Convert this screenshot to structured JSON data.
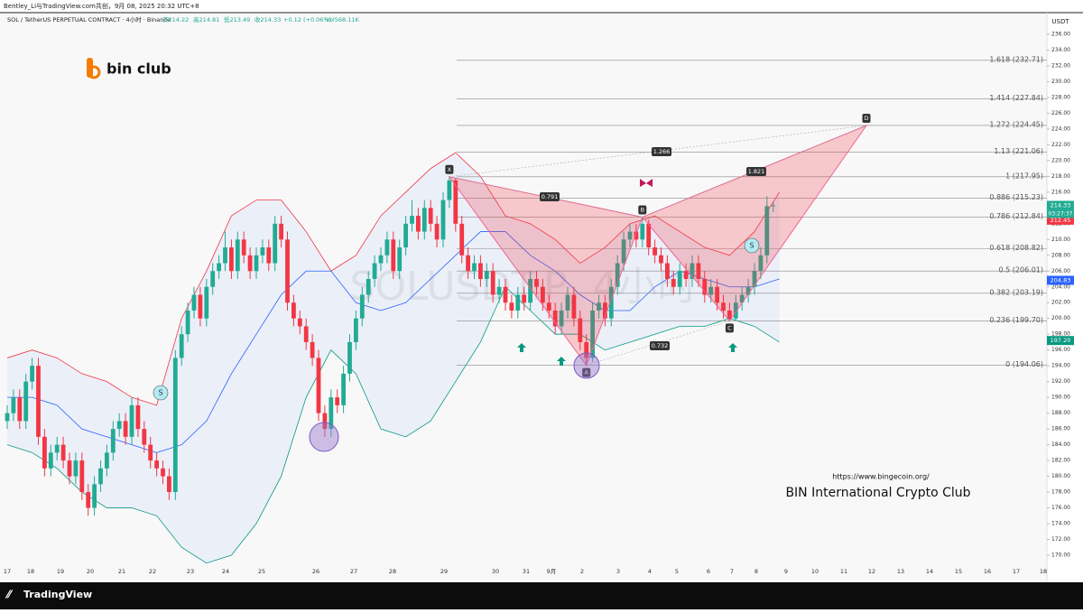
{
  "header": {
    "credit": "Bentley_Li与TradingView.com共创，9月 08, 2025 20:32 UTC+8",
    "symbol": "SOL / TetherUS PERPETUAL CONTRACT · 4小时 · Binance",
    "open": "开214.22",
    "high": "高214.81",
    "low": "低213.49",
    "close": "收214.33",
    "change": "+0.12 (+0.06%)",
    "volume": "Vol568.11K"
  },
  "logo": "bin club",
  "watermark": "SOLUSDT.P, 4小时",
  "url": "https://www.bingecoin.org/",
  "club": "BIN International Crypto Club",
  "brand": "TradingView",
  "currency": "USDT",
  "chart_data": {
    "type": "candlestick",
    "ylim": [
      170,
      236
    ],
    "yticks": [
      {
        "value": 236,
        "label": "236.00"
      },
      {
        "value": 234,
        "label": "234.00"
      },
      {
        "value": 232,
        "label": "232.00"
      },
      {
        "value": 230,
        "label": "230.00"
      },
      {
        "value": 228,
        "label": "228.00"
      },
      {
        "value": 226,
        "label": "226.00"
      },
      {
        "value": 224,
        "label": "224.00"
      },
      {
        "value": 222,
        "label": "222.00"
      },
      {
        "value": 220,
        "label": "220.00"
      },
      {
        "value": 218,
        "label": "218.00"
      },
      {
        "value": 216,
        "label": "216.00"
      },
      {
        "value": 214,
        "label": "214.00"
      },
      {
        "value": 212,
        "label": "212.00"
      },
      {
        "value": 210,
        "label": "210.00"
      },
      {
        "value": 208,
        "label": "208.00"
      },
      {
        "value": 206,
        "label": "206.00"
      },
      {
        "value": 204,
        "label": "204.00"
      },
      {
        "value": 202,
        "label": "202.00"
      },
      {
        "value": 200,
        "label": "200.00"
      },
      {
        "value": 198,
        "label": "198.00"
      },
      {
        "value": 196,
        "label": "196.00"
      },
      {
        "value": 194,
        "label": "194.00"
      },
      {
        "value": 192,
        "label": "192.00"
      },
      {
        "value": 190,
        "label": "190.00"
      },
      {
        "value": 188,
        "label": "188.00"
      },
      {
        "value": 186,
        "label": "186.00"
      },
      {
        "value": 184,
        "label": "184.00"
      },
      {
        "value": 182,
        "label": "182.00"
      },
      {
        "value": 180,
        "label": "180.00"
      },
      {
        "value": 178,
        "label": "178.00"
      },
      {
        "value": 176,
        "label": "176.00"
      },
      {
        "value": 174,
        "label": "174.00"
      },
      {
        "value": 172,
        "label": "172.00"
      },
      {
        "value": 170,
        "label": "170.00"
      }
    ],
    "xticks": [
      "17",
      "18",
      "19",
      "20",
      "21",
      "22",
      "23",
      "24",
      "25",
      "26",
      "27",
      "28",
      "29",
      "30",
      "31",
      "9月",
      "2",
      "3",
      "4",
      "5",
      "6",
      "7",
      "8",
      "9",
      "10",
      "11",
      "12",
      "13",
      "14",
      "15",
      "16",
      "17",
      "18"
    ],
    "up_color": "#22ab94",
    "down_color": "#f23645",
    "open": [
      187,
      188,
      190,
      187,
      192,
      194,
      185,
      181,
      183,
      184,
      182,
      180,
      182,
      178,
      176,
      179,
      181,
      183,
      186,
      187,
      185,
      189,
      186,
      184,
      182,
      181,
      180,
      178,
      195,
      198,
      201,
      203,
      200,
      204,
      206,
      207,
      209,
      206,
      210,
      208,
      206,
      208,
      209,
      207,
      212,
      210,
      202,
      200,
      199,
      197,
      195,
      188,
      186,
      190,
      189,
      193,
      197,
      200,
      203,
      205,
      207,
      208,
      210,
      206,
      209,
      212,
      213,
      211,
      214,
      212,
      210,
      215,
      217.5,
      212,
      208,
      206,
      207,
      205,
      206,
      203,
      204,
      202,
      201,
      203,
      202,
      205,
      204,
      202,
      201,
      199,
      201,
      203,
      200,
      197,
      195,
      201,
      202,
      200,
      204,
      207,
      210,
      211,
      210,
      212,
      209,
      208,
      207,
      205,
      204,
      206,
      205,
      207,
      205,
      203,
      204,
      202,
      201,
      200,
      202,
      203,
      204,
      206,
      208,
      214.22
    ],
    "high": [
      189,
      191,
      191,
      193,
      195,
      195,
      186,
      184,
      185,
      185,
      183,
      183,
      183,
      179,
      180,
      182,
      184,
      187,
      188,
      188,
      190,
      190,
      187,
      185,
      183,
      182,
      181,
      196,
      199,
      202,
      204,
      204,
      205,
      207,
      208,
      211,
      210,
      211,
      211,
      209,
      209,
      210,
      210,
      213,
      213,
      211,
      203,
      201,
      200,
      198,
      196,
      189,
      191,
      191,
      194,
      198,
      201,
      204,
      206,
      208,
      209,
      211,
      211,
      210,
      213,
      215,
      214,
      215,
      215,
      213,
      216,
      217.95,
      217.8,
      213,
      209,
      208,
      208,
      207,
      207,
      205,
      205,
      203,
      204,
      204,
      206,
      206,
      205,
      203,
      202,
      202,
      204,
      204,
      201,
      198,
      202,
      203,
      203,
      205,
      208,
      211,
      212,
      212,
      212.84,
      212.5,
      210,
      209,
      208,
      206,
      207,
      207,
      208,
      208,
      206,
      205,
      205,
      203,
      202,
      203,
      204,
      205,
      207,
      209,
      215.5,
      214.81
    ],
    "low": [
      186,
      187,
      186,
      186,
      191,
      184,
      180,
      180,
      182,
      181,
      179,
      179,
      177,
      175,
      175,
      178,
      180,
      182,
      185,
      184,
      184,
      185,
      183,
      181,
      180,
      179,
      177,
      177,
      194,
      197,
      200,
      199,
      199,
      203,
      205,
      206,
      205,
      205,
      207,
      205,
      205,
      207,
      206,
      206,
      209,
      201,
      199,
      198,
      196,
      194,
      187,
      185,
      185,
      188,
      188,
      192,
      196,
      199,
      202,
      204,
      206,
      207,
      205,
      205,
      208,
      211,
      210,
      210,
      211,
      209,
      209,
      214,
      211,
      207,
      205,
      205,
      204,
      204,
      202,
      202,
      201,
      200,
      200,
      201,
      201,
      203,
      201,
      200,
      198,
      198,
      200,
      199,
      196,
      194.06,
      194.5,
      200,
      199,
      199,
      203,
      206,
      209,
      209,
      209,
      208,
      207,
      206,
      204,
      203,
      203,
      204,
      204,
      204,
      202,
      202,
      201,
      200,
      199.7,
      199.8,
      201,
      202,
      203,
      205,
      207,
      213.49
    ],
    "close": [
      188,
      190,
      187,
      192,
      194,
      185,
      181,
      183,
      184,
      182,
      180,
      182,
      178,
      176,
      179,
      181,
      183,
      186,
      187,
      185,
      189,
      186,
      184,
      182,
      181,
      180,
      178,
      195,
      198,
      201,
      203,
      200,
      204,
      206,
      207,
      209,
      206,
      210,
      208,
      206,
      208,
      209,
      207,
      212,
      210,
      202,
      200,
      199,
      197,
      195,
      188,
      186,
      190,
      189,
      193,
      197,
      200,
      203,
      205,
      207,
      208,
      210,
      206,
      209,
      212,
      213,
      211,
      214,
      212,
      210,
      215,
      217.5,
      212,
      208,
      206,
      207,
      205,
      206,
      203,
      204,
      202,
      201,
      203,
      202,
      205,
      204,
      202,
      201,
      199,
      201,
      203,
      200,
      197,
      195,
      201,
      202,
      200,
      204,
      207,
      210,
      211,
      210,
      212,
      209,
      208,
      207,
      205,
      204,
      206,
      205,
      207,
      205,
      203,
      204,
      202,
      201,
      200,
      202,
      203,
      204,
      206,
      208,
      214.22,
      214.33
    ],
    "bollinger": {
      "upper": [
        195,
        196,
        195,
        193,
        192,
        190,
        189,
        200,
        206,
        213,
        215,
        215,
        211,
        206,
        208,
        213,
        216,
        219,
        221,
        218,
        213,
        212,
        210,
        207,
        209,
        212,
        213,
        211,
        209,
        208,
        211,
        216
      ],
      "middle": [
        190,
        190,
        189,
        186,
        185,
        184,
        183,
        184,
        187,
        193,
        198,
        203,
        206,
        206,
        202,
        201,
        202,
        205,
        208,
        211,
        211,
        208,
        206,
        203,
        201,
        201,
        204,
        206,
        205,
        204,
        204,
        205
      ],
      "lower": [
        184,
        183,
        181,
        178,
        176,
        176,
        175,
        171,
        169,
        170,
        174,
        180,
        190,
        196,
        193,
        186,
        185,
        187,
        192,
        197,
        204,
        201,
        198,
        198,
        196,
        197,
        198,
        199,
        199,
        200,
        199,
        197
      ]
    },
    "fib_levels": [
      {
        "value": 232.71,
        "label": "1.618 (232.71)"
      },
      {
        "value": 227.84,
        "label": "1.414 (227.84)"
      },
      {
        "value": 224.45,
        "label": "1.272 (224.45)"
      },
      {
        "value": 221.06,
        "label": "1.13 (221.06)"
      },
      {
        "value": 217.95,
        "label": "1 (217.95)"
      },
      {
        "value": 215.23,
        "label": "0.886 (215.23)"
      },
      {
        "value": 212.84,
        "label": "0.786 (212.84)"
      },
      {
        "value": 208.82,
        "label": "0.618 (208.82)"
      },
      {
        "value": 206.01,
        "label": "0.5 (206.01)"
      },
      {
        "value": 203.19,
        "label": "0.382 (203.19)"
      },
      {
        "value": 199.7,
        "label": "0.236 (199.70)"
      },
      {
        "value": 194.06,
        "label": "0 (194.06)"
      }
    ],
    "pattern": {
      "points": [
        {
          "label": "X",
          "value": 217.95
        },
        {
          "label": "A",
          "value": 194.06
        },
        {
          "label": "B",
          "value": 212.84
        },
        {
          "label": "C",
          "value": 199.7
        },
        {
          "label": "D",
          "value": 224.45
        }
      ],
      "ratios": [
        "0.791",
        "1.266",
        "0.732",
        "1.821"
      ]
    },
    "price_labels": [
      {
        "value": 214.33,
        "label": "214.33",
        "color": "#22ab94"
      },
      {
        "value": 212.45,
        "label": "212.45",
        "color": "#f23645"
      },
      {
        "value": 204.83,
        "label": "204.83",
        "color": "#2962ff"
      },
      {
        "value": 197.2,
        "label": "197.20",
        "color": "#089981"
      }
    ],
    "countdown": "03:27:37",
    "signals": [
      "S",
      "S"
    ]
  }
}
